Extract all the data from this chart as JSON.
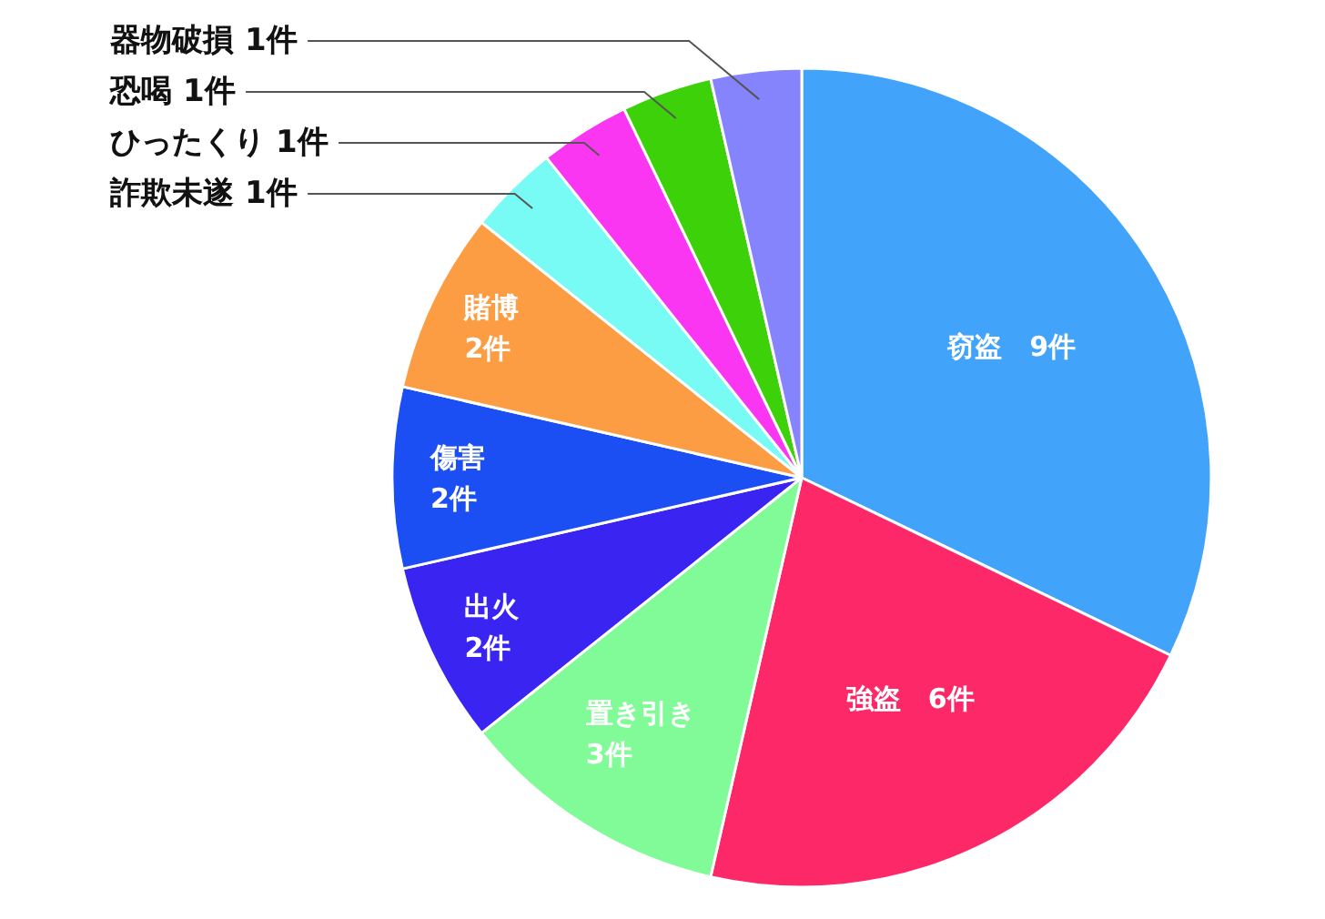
{
  "chart_data": {
    "type": "pie",
    "categories": [
      "窃盗",
      "強盗",
      "置き引き",
      "出火",
      "傷害",
      "賭博",
      "詐欺未遂",
      "ひったくり",
      "恐喝",
      "器物破損"
    ],
    "values": [
      9,
      6,
      3,
      2,
      2,
      2,
      1,
      1,
      1,
      1
    ],
    "colors": [
      "#41a3fa",
      "#fd2868",
      "#80fb98",
      "#3a24f2",
      "#1b4ff4",
      "#fc9d44",
      "#78fbf4",
      "#fb36f3",
      "#3dd10a",
      "#8684fc"
    ],
    "value_labels": [
      "9件",
      "6件",
      "3件",
      "2件",
      "2件",
      "2件",
      "1件",
      "1件",
      "1件",
      "1件"
    ]
  }
}
